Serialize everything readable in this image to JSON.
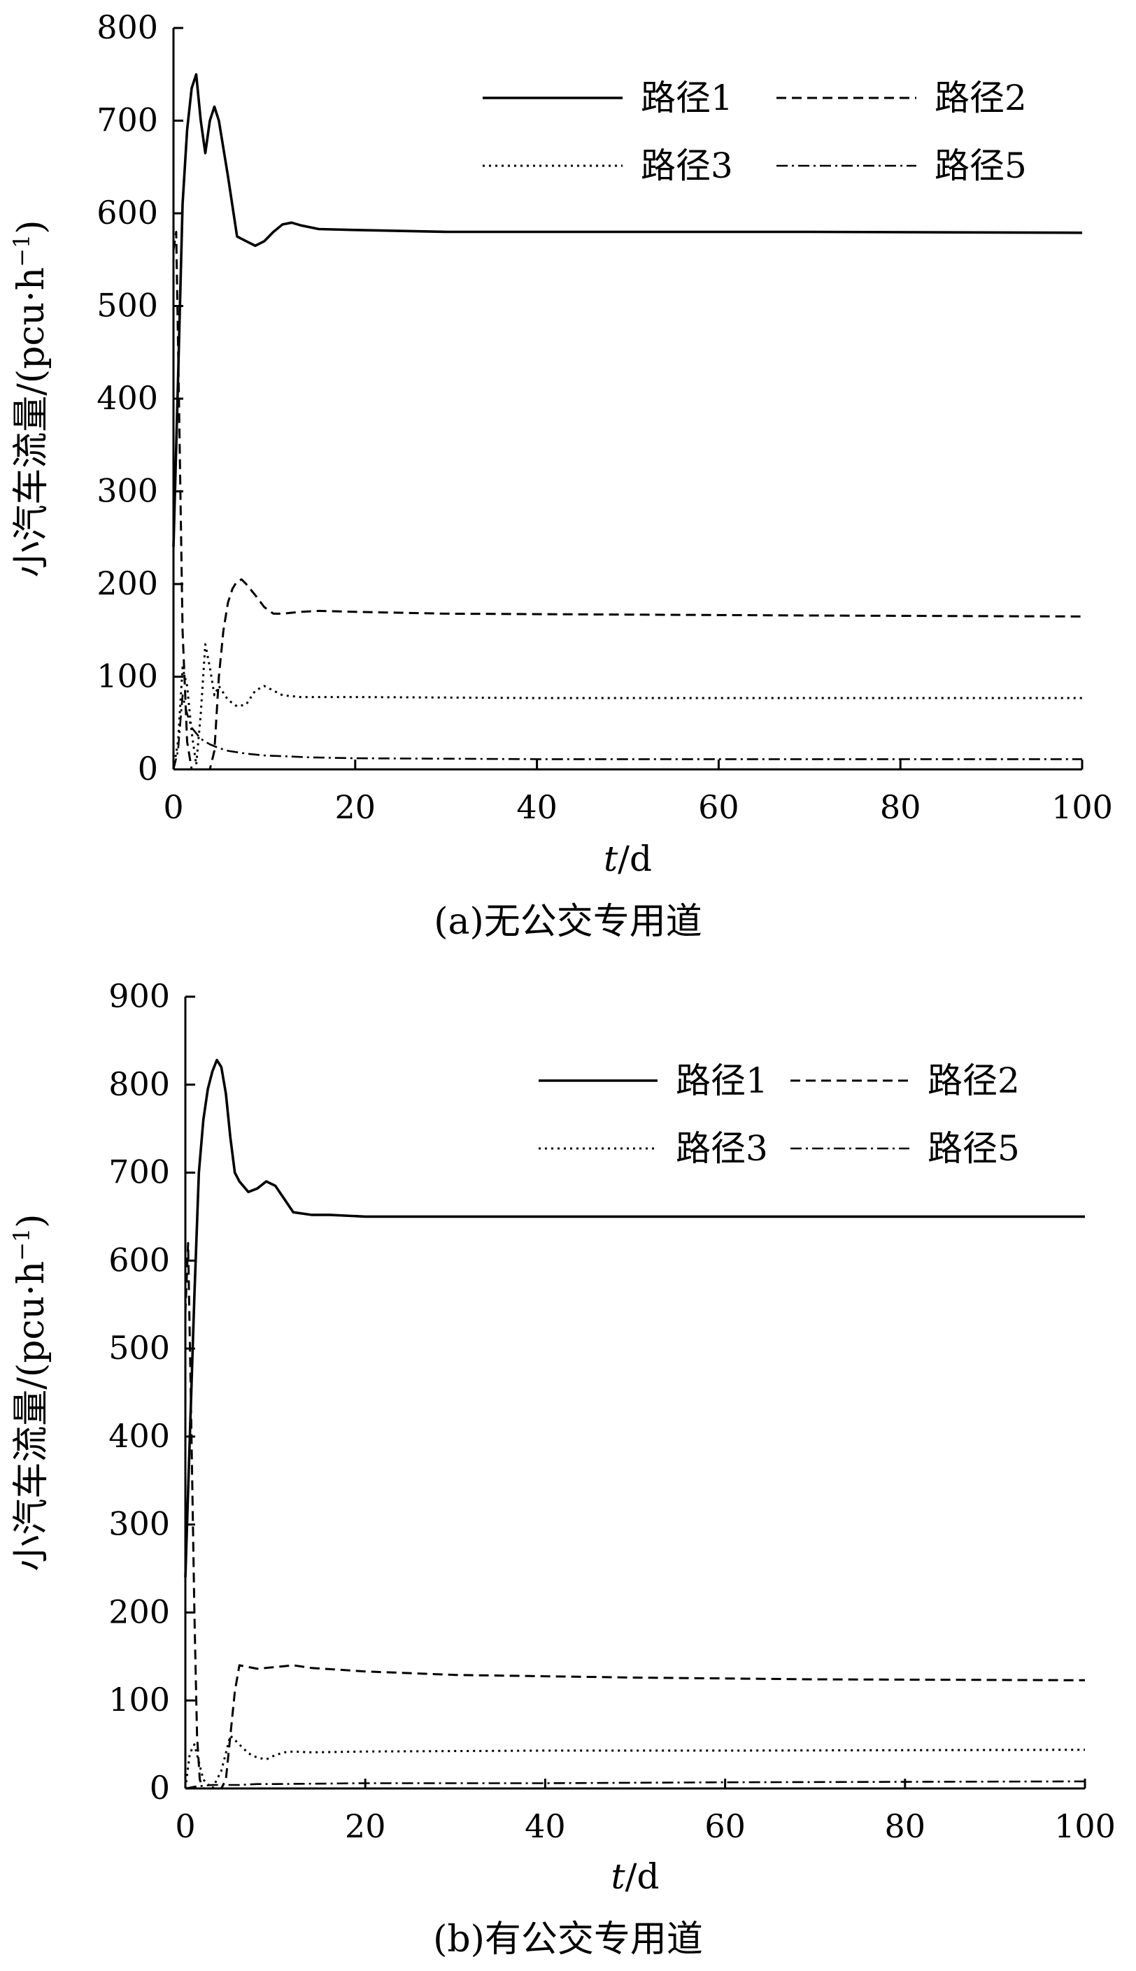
{
  "chart_data": [
    {
      "type": "line",
      "caption": "(a)无公交专用道",
      "xlabel_italic": "t",
      "xlabel_rest": "/d",
      "ylabel": "小汽车流量/(pcu·h",
      "ylabel_sup": "−1",
      "ylabel_close": ")",
      "xlim": [
        0,
        100
      ],
      "ylim": [
        0,
        800
      ],
      "xticks": [
        0,
        20,
        40,
        60,
        80,
        100
      ],
      "yticks": [
        0,
        100,
        200,
        300,
        400,
        500,
        600,
        700,
        800
      ],
      "legend_position": "top-right",
      "series": [
        {
          "name": "路径1",
          "style": "solid",
          "x": [
            0,
            0.5,
            1,
            1.5,
            2,
            2.5,
            3,
            3.5,
            4,
            4.5,
            5,
            6,
            7,
            8,
            9,
            10,
            11,
            12,
            13,
            14,
            16,
            20,
            30,
            50,
            70,
            100
          ],
          "y": [
            240,
            420,
            610,
            690,
            735,
            750,
            700,
            665,
            700,
            715,
            700,
            640,
            575,
            570,
            565,
            570,
            580,
            588,
            590,
            587,
            583,
            582,
            580,
            580,
            580,
            579
          ]
        },
        {
          "name": "路径2",
          "style": "dashed",
          "x": [
            0,
            0.3,
            0.6,
            1,
            1.5,
            2,
            2.5,
            3,
            3.5,
            4,
            4.5,
            5,
            5.5,
            6,
            6.5,
            7,
            7.5,
            8,
            9,
            10,
            11,
            12,
            14,
            16,
            20,
            30,
            50,
            70,
            100
          ],
          "y": [
            560,
            580,
            400,
            150,
            30,
            0,
            0,
            0,
            0,
            0,
            20,
            100,
            150,
            180,
            195,
            203,
            205,
            200,
            188,
            175,
            168,
            168,
            170,
            171,
            170,
            168,
            167,
            166,
            165
          ]
        },
        {
          "name": "路径3",
          "style": "dotted",
          "x": [
            0,
            0.5,
            1,
            1.5,
            2,
            2.5,
            3,
            3.5,
            4,
            4.5,
            5,
            6,
            7,
            8,
            9,
            10,
            11,
            12,
            14,
            20,
            40,
            60,
            100
          ],
          "y": [
            0,
            30,
            110,
            90,
            40,
            5,
            60,
            135,
            110,
            80,
            90,
            75,
            68,
            70,
            85,
            90,
            85,
            80,
            78,
            78,
            77,
            77,
            77
          ]
        },
        {
          "name": "路径5",
          "style": "dashdot",
          "x": [
            0,
            0.5,
            1,
            1.5,
            2,
            3,
            4,
            5,
            6,
            8,
            10,
            15,
            20,
            40,
            60,
            100
          ],
          "y": [
            0,
            20,
            80,
            60,
            45,
            33,
            27,
            23,
            20,
            17,
            15,
            13,
            12,
            11,
            11,
            11
          ]
        }
      ]
    },
    {
      "type": "line",
      "caption": "(b)有公交专用道",
      "xlabel_italic": "t",
      "xlabel_rest": "/d",
      "ylabel": "小汽车流量/(pcu·h",
      "ylabel_sup": "−1",
      "ylabel_close": ")",
      "xlim": [
        0,
        100
      ],
      "ylim": [
        0,
        900
      ],
      "xticks": [
        0,
        20,
        40,
        60,
        80,
        100
      ],
      "yticks": [
        0,
        100,
        200,
        300,
        400,
        500,
        600,
        700,
        800,
        900
      ],
      "legend_position": "top-right",
      "series": [
        {
          "name": "路径1",
          "style": "solid",
          "x": [
            0,
            0.5,
            1,
            1.5,
            2,
            2.5,
            3,
            3.5,
            4,
            4.5,
            5,
            5.5,
            6,
            7,
            8,
            9,
            10,
            11,
            12,
            14,
            16,
            20,
            30,
            50,
            70,
            100
          ],
          "y": [
            240,
            400,
            560,
            700,
            760,
            795,
            815,
            828,
            820,
            790,
            740,
            700,
            690,
            678,
            682,
            690,
            685,
            670,
            655,
            652,
            652,
            650,
            650,
            650,
            650,
            650
          ]
        },
        {
          "name": "路径2",
          "style": "dashed",
          "x": [
            0,
            0.3,
            0.6,
            1,
            1.3,
            1.6,
            2,
            2.5,
            3,
            3.5,
            4,
            4.5,
            5,
            5.5,
            6,
            7,
            8,
            10,
            12,
            14,
            20,
            30,
            50,
            70,
            100
          ],
          "y": [
            540,
            620,
            450,
            200,
            60,
            10,
            0,
            0,
            0,
            0,
            0,
            10,
            60,
            110,
            140,
            138,
            136,
            138,
            140,
            137,
            133,
            129,
            126,
            124,
            123
          ]
        },
        {
          "name": "路径3",
          "style": "dotted",
          "x": [
            0,
            0.5,
            1,
            1.5,
            2,
            3,
            4,
            5,
            6,
            7,
            8,
            9,
            10,
            11,
            12,
            14,
            20,
            40,
            60,
            100
          ],
          "y": [
            0,
            40,
            50,
            30,
            10,
            0,
            20,
            60,
            50,
            40,
            35,
            33,
            38,
            41,
            42,
            41,
            42,
            43,
            43,
            44
          ]
        },
        {
          "name": "路径5",
          "style": "dashdot",
          "x": [
            0,
            1,
            2,
            3,
            4,
            5,
            6,
            8,
            10,
            20,
            40,
            60,
            100
          ],
          "y": [
            0,
            2,
            3,
            4,
            4,
            4,
            4,
            5,
            5,
            6,
            6,
            7,
            8
          ]
        }
      ]
    }
  ]
}
